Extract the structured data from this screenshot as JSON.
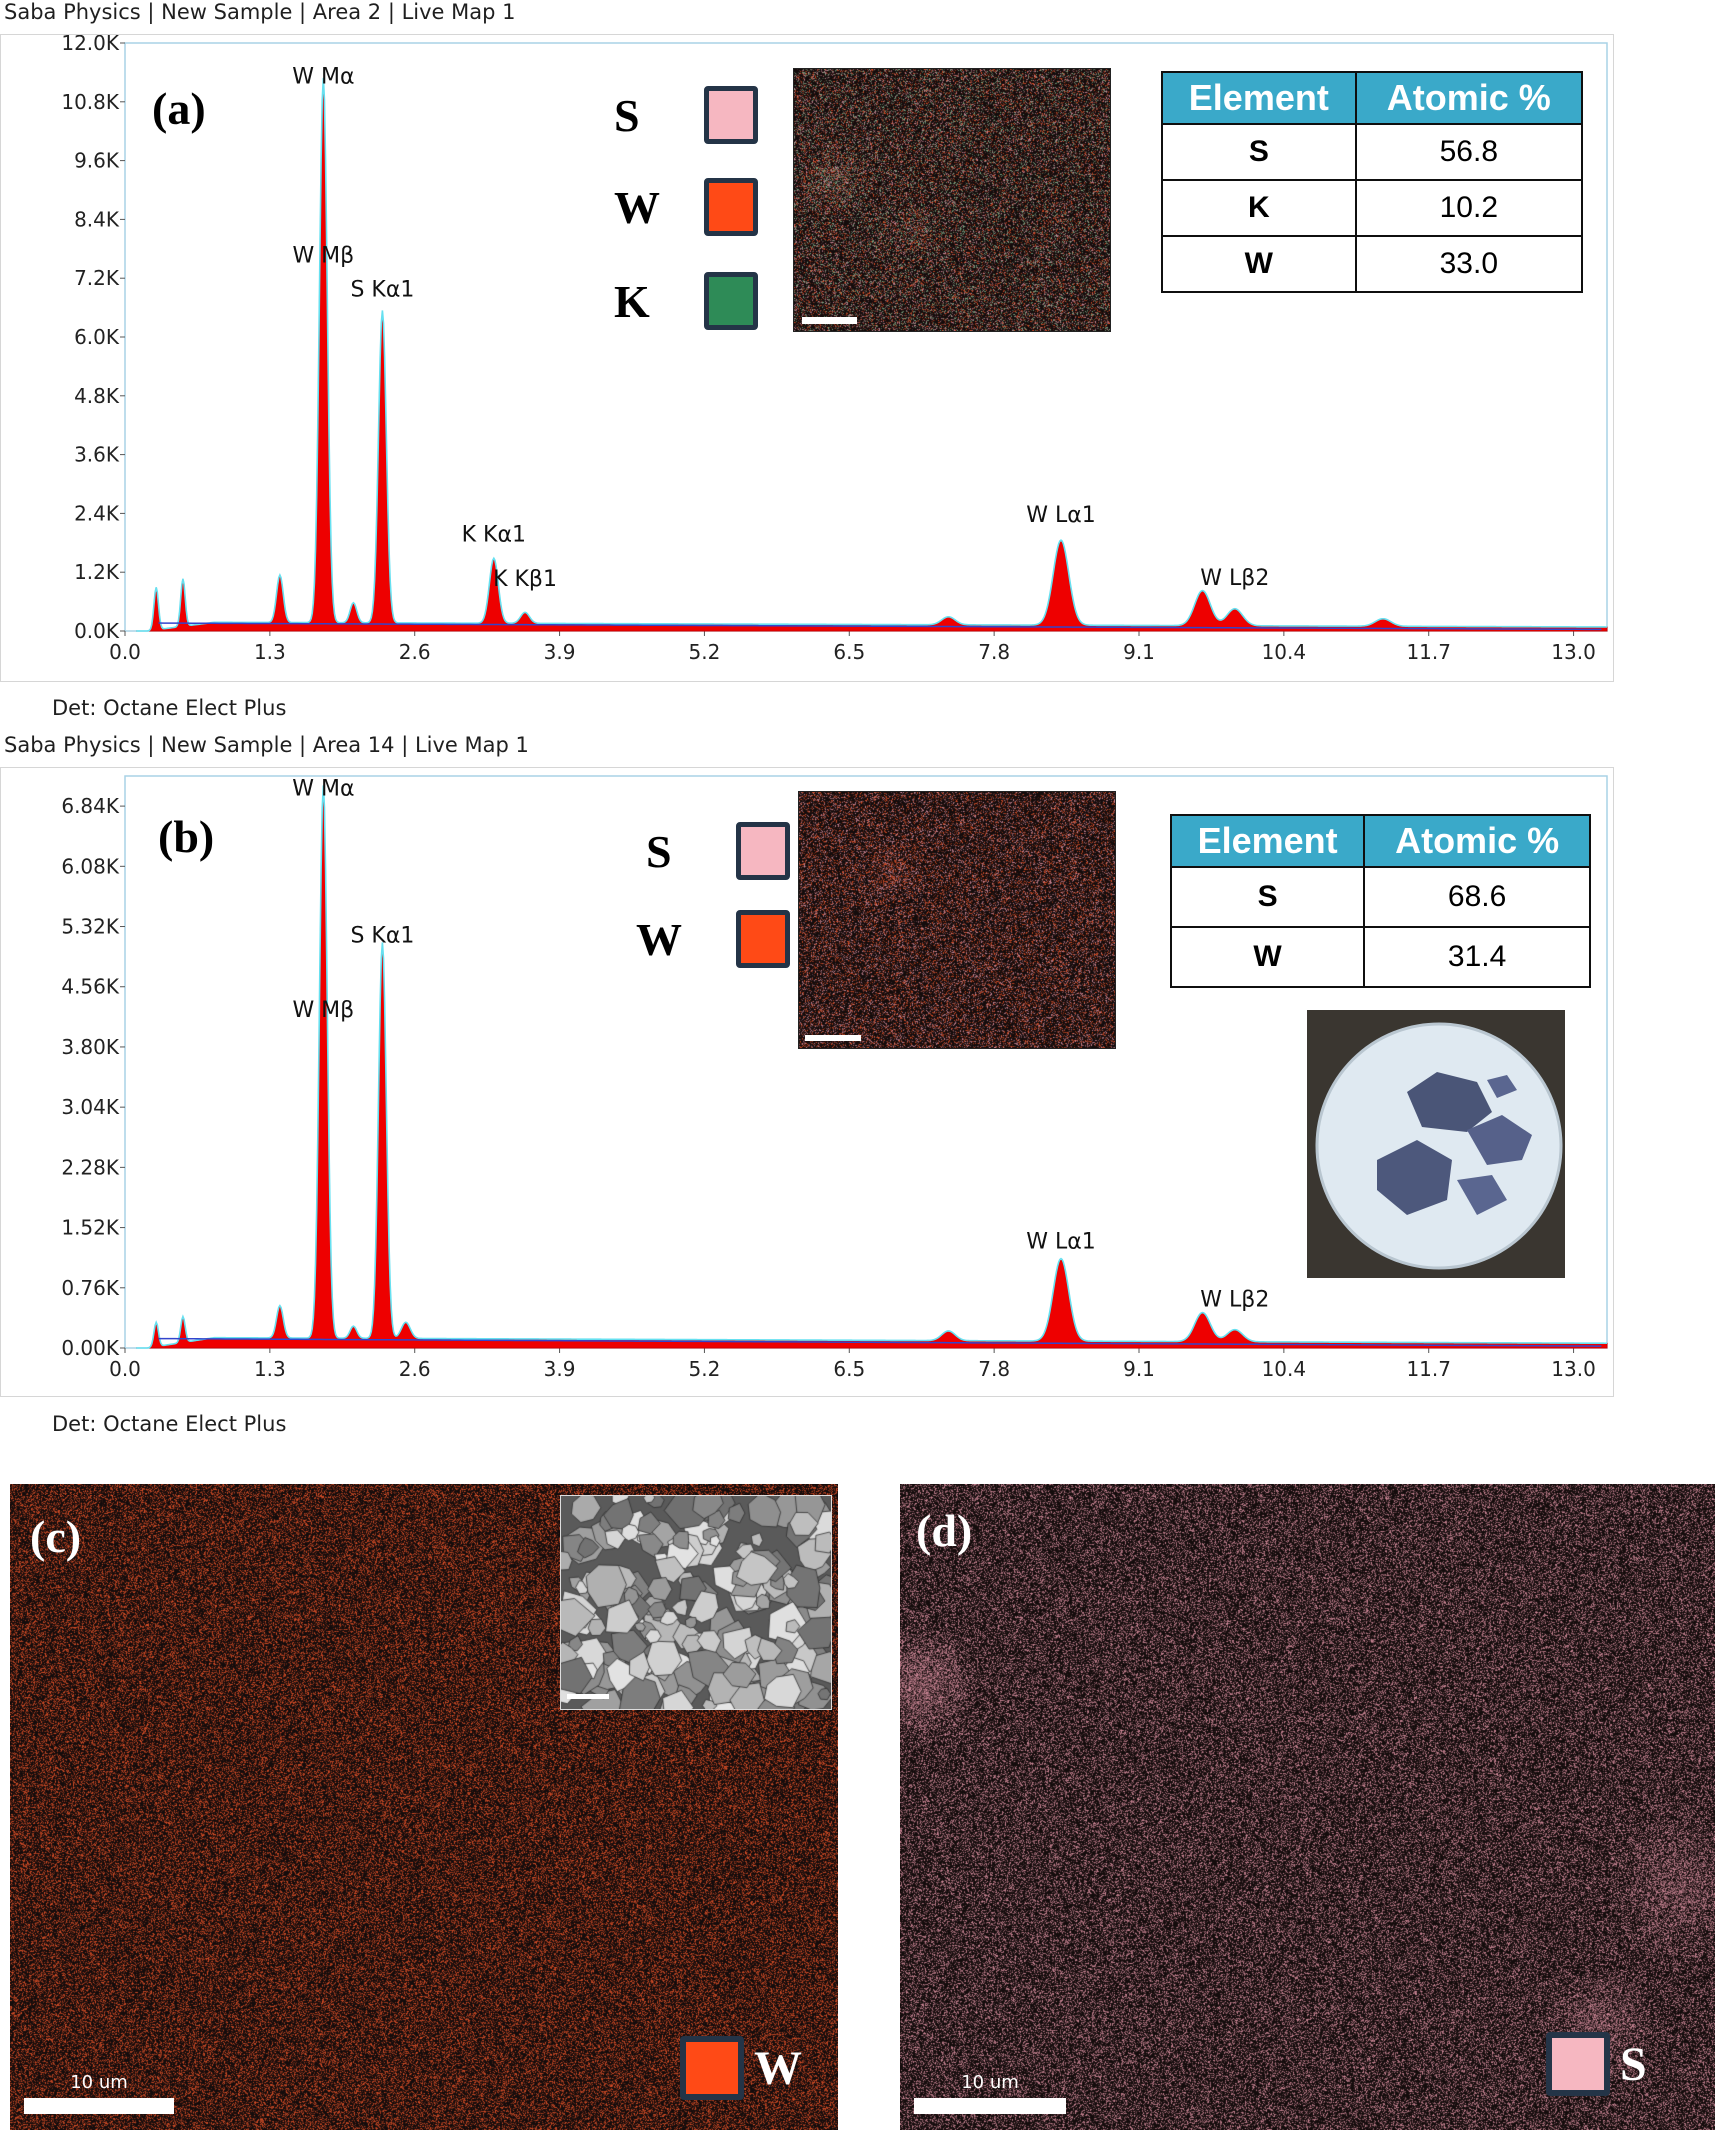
{
  "panel_a": {
    "header": "Saba Physics | New Sample | Area 2 | Live Map 1",
    "detector": "Det: Octane Elect Plus",
    "label": "(a)",
    "legend": [
      {
        "symbol": "S",
        "color": "#f6b7c1"
      },
      {
        "symbol": "W",
        "color": "#ff4a16"
      },
      {
        "symbol": "K",
        "color": "#2e8b57"
      }
    ],
    "table": {
      "headers": [
        "Element",
        "Atomic %"
      ],
      "rows": [
        [
          "S",
          "56.8"
        ],
        [
          "K",
          "10.2"
        ],
        [
          "W",
          "33.0"
        ]
      ]
    }
  },
  "panel_b": {
    "header": "Saba Physics | New Sample | Area 14 | Live Map 1",
    "detector": "Det: Octane Elect Plus",
    "label": "(b)",
    "legend": [
      {
        "symbol": "S",
        "color": "#f6b7c1"
      },
      {
        "symbol": "W",
        "color": "#ff4a16"
      }
    ],
    "table": {
      "headers": [
        "Element",
        "Atomic %"
      ],
      "rows": [
        [
          "S",
          "68.6"
        ],
        [
          "W",
          "31.4"
        ]
      ]
    }
  },
  "panel_c": {
    "label": "(c)",
    "legend_symbol": "W",
    "legend_color": "#ff4a16",
    "scale_label": "10 um",
    "map_color": "#ff5522"
  },
  "panel_d": {
    "label": "(d)",
    "legend_symbol": "S",
    "legend_color": "#f6b7c1",
    "scale_label": "10 um",
    "map_color": "#f0a0b4"
  },
  "chart_data": [
    {
      "type": "area",
      "xlim": [
        0,
        13.3
      ],
      "ylim": [
        0,
        12000
      ],
      "x_ticks": [
        "0.0",
        "1.3",
        "2.6",
        "3.9",
        "5.2",
        "6.5",
        "7.8",
        "9.1",
        "10.4",
        "11.7",
        "13.0"
      ],
      "y_ticks": [
        "0.0K",
        "1.2K",
        "2.4K",
        "3.6K",
        "4.8K",
        "6.0K",
        "7.2K",
        "8.4K",
        "9.6K",
        "10.8K",
        "12.0K"
      ],
      "peaks": [
        {
          "x": 0.28,
          "y": 850,
          "w": 0.02
        },
        {
          "x": 0.52,
          "y": 950,
          "w": 0.02
        },
        {
          "x": 1.39,
          "y": 950,
          "w": 0.03
        },
        {
          "x": 1.78,
          "y": 10900,
          "w": 0.035
        },
        {
          "x": 2.05,
          "y": 400,
          "w": 0.03
        },
        {
          "x": 2.31,
          "y": 6250,
          "w": 0.035
        },
        {
          "x": 3.31,
          "y": 1300,
          "w": 0.04
        },
        {
          "x": 3.59,
          "y": 220,
          "w": 0.04
        },
        {
          "x": 7.39,
          "y": 160,
          "w": 0.06
        },
        {
          "x": 8.4,
          "y": 1700,
          "w": 0.07
        },
        {
          "x": 9.67,
          "y": 700,
          "w": 0.07
        },
        {
          "x": 9.96,
          "y": 340,
          "w": 0.07
        },
        {
          "x": 11.29,
          "y": 150,
          "w": 0.07
        }
      ],
      "background": 150,
      "annotations": [
        {
          "text": "W  Mα",
          "x": 1.78,
          "y": 11050
        },
        {
          "text": "W  Mβ",
          "x": 1.78,
          "y": 7400
        },
        {
          "text": "S  Kα1",
          "x": 2.31,
          "y": 6700
        },
        {
          "text": "K  Kα1",
          "x": 3.31,
          "y": 1700
        },
        {
          "text": "K  Kβ1",
          "x": 3.59,
          "y": 800
        },
        {
          "text": "W  Lα1",
          "x": 8.4,
          "y": 2100
        },
        {
          "text": "W  Lβ2",
          "x": 9.96,
          "y": 820
        }
      ]
    },
    {
      "type": "area",
      "xlim": [
        0,
        13.3
      ],
      "ylim": [
        0,
        7220
      ],
      "x_ticks": [
        "0.0",
        "1.3",
        "2.6",
        "3.9",
        "5.2",
        "6.5",
        "7.8",
        "9.1",
        "10.4",
        "11.7",
        "13.0"
      ],
      "y_ticks": [
        "0.00K",
        "0.76K",
        "1.52K",
        "2.28K",
        "3.04K",
        "3.80K",
        "4.56K",
        "5.32K",
        "6.08K",
        "6.84K"
      ],
      "peaks": [
        {
          "x": 0.28,
          "y": 300,
          "w": 0.02
        },
        {
          "x": 0.52,
          "y": 320,
          "w": 0.02
        },
        {
          "x": 1.39,
          "y": 400,
          "w": 0.03
        },
        {
          "x": 1.78,
          "y": 6840,
          "w": 0.035
        },
        {
          "x": 2.05,
          "y": 150,
          "w": 0.03
        },
        {
          "x": 2.31,
          "y": 4900,
          "w": 0.035
        },
        {
          "x": 2.52,
          "y": 200,
          "w": 0.04
        },
        {
          "x": 7.39,
          "y": 120,
          "w": 0.06
        },
        {
          "x": 8.4,
          "y": 1020,
          "w": 0.07
        },
        {
          "x": 9.67,
          "y": 360,
          "w": 0.07
        },
        {
          "x": 9.96,
          "y": 150,
          "w": 0.07
        }
      ],
      "background": 110,
      "annotations": [
        {
          "text": "W  Mα",
          "x": 1.78,
          "y": 6900
        },
        {
          "text": "S  Kα1",
          "x": 2.31,
          "y": 5040
        },
        {
          "text": "W  Mβ",
          "x": 1.78,
          "y": 4100
        },
        {
          "text": "W  Lα1",
          "x": 8.4,
          "y": 1180
        },
        {
          "text": "W  Lβ2",
          "x": 9.96,
          "y": 450
        }
      ]
    }
  ]
}
